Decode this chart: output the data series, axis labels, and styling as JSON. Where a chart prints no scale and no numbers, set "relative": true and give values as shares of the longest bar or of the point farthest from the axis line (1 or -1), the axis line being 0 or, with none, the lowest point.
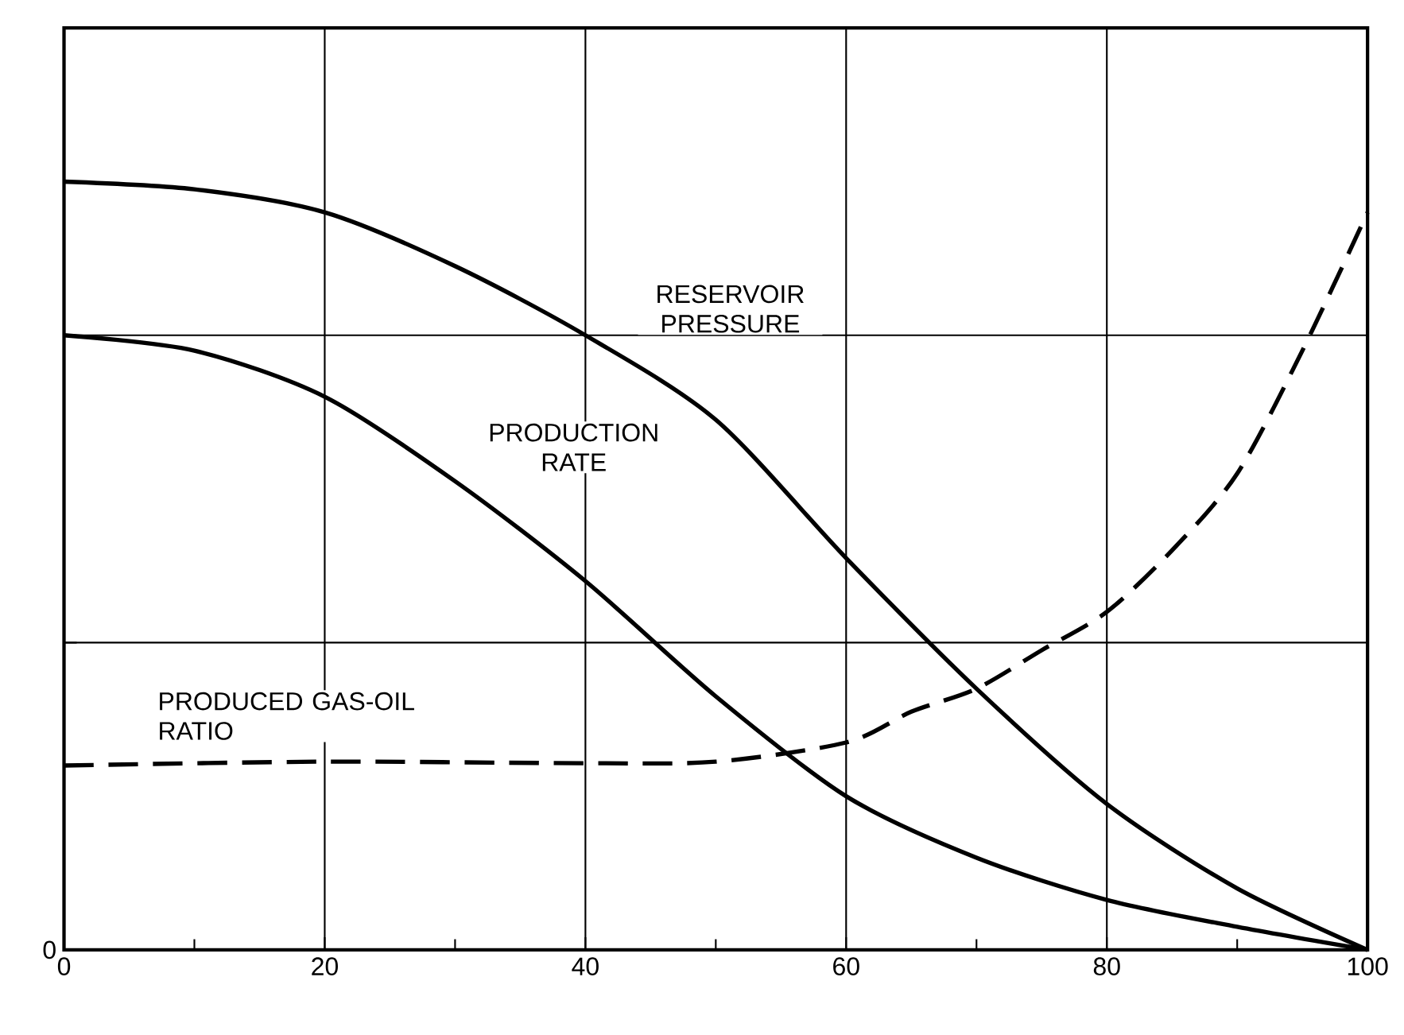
{
  "chart_data": {
    "type": "line",
    "relative": true,
    "x": [
      0,
      10,
      20,
      30,
      40,
      50,
      60,
      70,
      80,
      90,
      100
    ],
    "xlim": [
      0,
      100
    ],
    "xticks": [
      0,
      {
        "value": 10,
        "label": null
      },
      20,
      {
        "value": 30,
        "label": null
      },
      40,
      {
        "value": 50,
        "label": null
      },
      60,
      {
        "value": 70,
        "label": null
      },
      80,
      {
        "value": 90,
        "label": null
      },
      100
    ],
    "grid": true,
    "legend": false,
    "marker": "none",
    "line_style": "solid",
    "annotations": [
      "0"
    ],
    "series": [
      {
        "name": "RESERVOIR PRESSURE",
        "color": "#000000",
        "values": [
          1.0,
          0.99,
          0.96,
          0.89,
          0.8,
          0.69,
          0.51,
          0.34,
          0.19,
          0.08,
          0.0
        ]
      },
      {
        "name": "PRODUCTION RATE",
        "color": "#000000",
        "values": [
          0.8,
          0.78,
          0.72,
          0.61,
          0.48,
          0.33,
          0.2,
          0.12,
          0.065,
          0.03,
          0.0
        ]
      },
      {
        "name": "PRODUCED GAS-OIL RATIO",
        "color": "#000000",
        "line_style": "dashed",
        "x": [
          0,
          20,
          40,
          50,
          60,
          65,
          70,
          75,
          80,
          85,
          90,
          95,
          100
        ],
        "values": [
          0.24,
          0.245,
          0.243,
          0.245,
          0.27,
          0.31,
          0.34,
          0.39,
          0.44,
          0.52,
          0.62,
          0.78,
          0.96
        ]
      }
    ]
  }
}
